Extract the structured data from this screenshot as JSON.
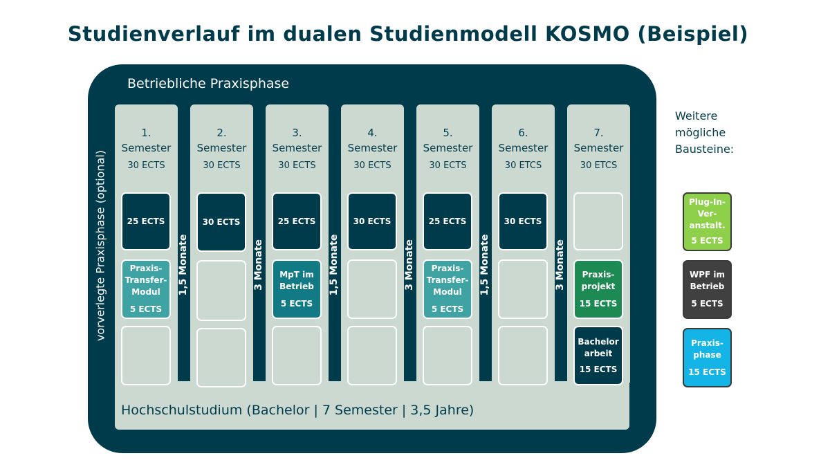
{
  "title": "Studienverlauf im dualen Studienmodell KOSMO (Beispiel)",
  "frame_label": "Betriebliche Praxisphase",
  "side_label": "vorverlegte Praxisphase (optional)",
  "base_label": "Hochschulstudium (Bachelor | 7 Semester | 3,5 Jahre)",
  "semesters": [
    {
      "num": "1.",
      "label": "Semester",
      "ects": "30 ECTS",
      "box1": "25 ECTS",
      "box2": {
        "lines": [
          "Praxis-",
          "Transfer-",
          "Modul"
        ],
        "ects": "5 ECTS"
      }
    },
    {
      "num": "2.",
      "label": "Semester",
      "ects": "30 ECTS",
      "box1": "30 ECTS"
    },
    {
      "num": "3.",
      "label": "Semester",
      "ects": "30 ECTS",
      "box1": "25 ECTS",
      "box2": {
        "lines": [
          "MpT im",
          "Betrieb"
        ],
        "ects": "5 ECTS"
      }
    },
    {
      "num": "4.",
      "label": "Semester",
      "ects": "30 ECTS",
      "box1": "30 ECTS"
    },
    {
      "num": "5.",
      "label": "Semester",
      "ects": "30 ECTS",
      "box1": "25 ECTS",
      "box2": {
        "lines": [
          "Praxis-",
          "Transfer-",
          "Modul"
        ],
        "ects": "5 ECTS"
      }
    },
    {
      "num": "6.",
      "label": "Semester",
      "ects": "30 ETCS",
      "box1": "30 ECTS"
    },
    {
      "num": "7.",
      "label": "Semester",
      "ects": "30 ETCS",
      "box2": {
        "lines": [
          "Praxis-",
          "projekt"
        ],
        "ects": "15 ECTS"
      },
      "box3": {
        "lines": [
          "Bachelor",
          "arbeit"
        ],
        "ects": "15 ECTS"
      }
    }
  ],
  "gaps": [
    "1,5 Monate",
    "3 Monate",
    "1,5 Monate",
    "3 Monate",
    "1,5 Monate",
    "3 Monate"
  ],
  "weitere": {
    "lines": [
      "Weitere",
      "mögliche",
      "Bausteine:"
    ]
  },
  "modules": [
    {
      "lines": [
        "Plug-In-",
        "Ver-",
        "anstalt."
      ],
      "ects": "5 ECTS",
      "color": "#8ed04a"
    },
    {
      "lines": [
        "WPF im",
        "Betrieb"
      ],
      "ects": "5 ECTS",
      "color": "#404040"
    },
    {
      "lines": [
        "Praxis-",
        "phase"
      ],
      "ects": "15 ECTS",
      "color": "#14b4e6"
    }
  ],
  "colors": {
    "frame": "#003b4c",
    "light": "#cbd9d1",
    "teal": "#3fa3a3",
    "teal_dark": "#127a84",
    "green": "#1c8a52"
  }
}
